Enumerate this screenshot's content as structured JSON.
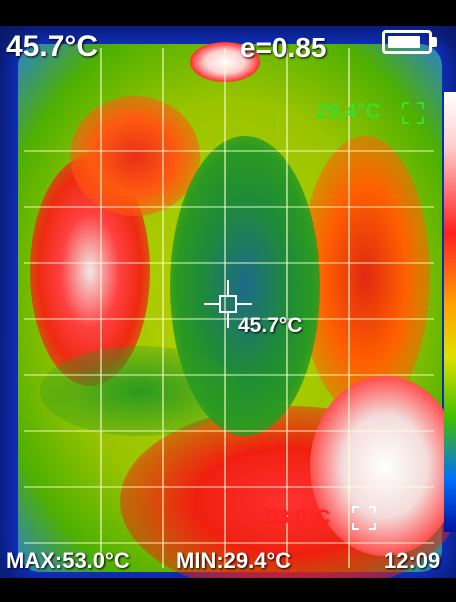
{
  "header": {
    "center_temperature": "45.7°C",
    "emissivity": "e=0.85",
    "battery_level": 0.85,
    "battery_icon": "battery-icon"
  },
  "markers": {
    "min_label": "29.4°C",
    "max_label": "53.0°C",
    "center_label": "45.7°C",
    "crosshair_icon": "crosshair-icon",
    "min_box_icon": "min-spot-box-icon",
    "max_box_icon": "max-spot-box-icon"
  },
  "status_bar": {
    "max_text": "MAX:53.0°C",
    "min_text": "MIN:29.4°C",
    "clock": "12:09"
  },
  "colors": {
    "min_marker": "#3ddc2a",
    "max_marker": "#ff2020",
    "text": "#ffffff"
  }
}
